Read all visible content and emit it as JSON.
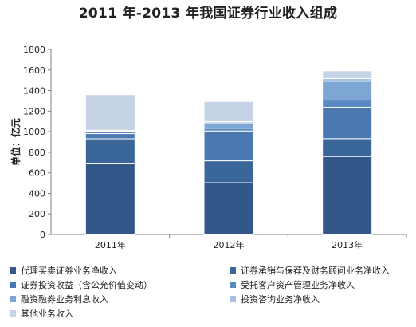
{
  "chart_data": {
    "type": "bar",
    "stacked": true,
    "title": "2011 年-2013 年我国证券行业收入组成",
    "ylabel": "单位：亿元",
    "xlabel": "",
    "categories": [
      "2011年",
      "2012年",
      "2013年"
    ],
    "ylim": [
      0,
      1800
    ],
    "yticks": [
      0,
      200,
      400,
      600,
      800,
      1000,
      1200,
      1400,
      1600,
      1800
    ],
    "grid": false,
    "legend_position": "bottom",
    "series": [
      {
        "name": "代理买卖证券业务净收入",
        "color": "#34578a",
        "values": [
          688,
          504,
          759
        ]
      },
      {
        "name": "证券承销与保荐及财务顾问业务净收入",
        "color": "#3a6699",
        "values": [
          243,
          213,
          173
        ]
      },
      {
        "name": "证券投资收益（含公允价值变动）",
        "color": "#4a79b2",
        "values": [
          50,
          290,
          305
        ]
      },
      {
        "name": "受托客户资产管理业务净收入",
        "color": "#5a88c0",
        "values": [
          20,
          27,
          70
        ]
      },
      {
        "name": "融资融券业务利息收入",
        "color": "#7ea6d4",
        "values": [
          7,
          52,
          184
        ]
      },
      {
        "name": "投资咨询业务净收入",
        "color": "#a9c1e0",
        "values": [
          5,
          12,
          26
        ]
      },
      {
        "name": "其他业务收入",
        "color": "#c6d3e6",
        "values": [
          347,
          196,
          75
        ]
      }
    ]
  }
}
